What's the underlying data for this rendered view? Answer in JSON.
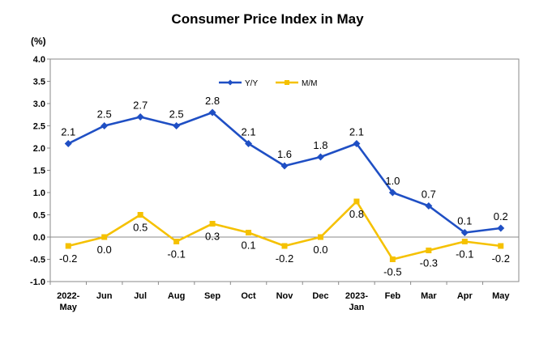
{
  "chart_data": {
    "type": "line",
    "title": "Consumer Price Index in May",
    "ylabel": "(%)",
    "xlabel": "",
    "ylim": [
      -1.0,
      4.0
    ],
    "yticks": [
      "4.0",
      "3.5",
      "3.0",
      "2.5",
      "2.0",
      "1.5",
      "1.0",
      "0.5",
      "0.0",
      "-0.5",
      "-1.0"
    ],
    "categories": [
      [
        "2022-",
        "May"
      ],
      [
        "Jun"
      ],
      [
        "Jul"
      ],
      [
        "Aug"
      ],
      [
        "Sep"
      ],
      [
        "Oct"
      ],
      [
        "Nov"
      ],
      [
        "Dec"
      ],
      [
        "2023-",
        "Jan"
      ],
      [
        "Feb"
      ],
      [
        "Mar"
      ],
      [
        "Apr"
      ],
      [
        "May"
      ]
    ],
    "series": [
      {
        "name": "Y/Y",
        "color": "#1F4FC4",
        "marker": "diamond",
        "values": [
          2.1,
          2.5,
          2.7,
          2.5,
          2.8,
          2.1,
          1.6,
          1.8,
          2.1,
          1.0,
          0.7,
          0.1,
          0.2
        ],
        "labels": [
          "2.1",
          "2.5",
          "2.7",
          "2.5",
          "2.8",
          "2.1",
          "1.6",
          "1.8",
          "2.1",
          "1.0",
          "0.7",
          "0.1",
          "0.2"
        ]
      },
      {
        "name": "M/M",
        "color": "#F5C100",
        "marker": "square",
        "values": [
          -0.2,
          0.0,
          0.5,
          -0.1,
          0.3,
          0.1,
          -0.2,
          0.0,
          0.8,
          -0.5,
          -0.3,
          -0.1,
          -0.2
        ],
        "labels": [
          "-0.2",
          "0.0",
          "0.5",
          "-0.1",
          "0.3",
          "0.1",
          "-0.2",
          "0.0",
          "0.8",
          "-0.5",
          "-0.3",
          "-0.1",
          "-0.2"
        ]
      }
    ],
    "grid": false,
    "legend_position": "top-center"
  }
}
